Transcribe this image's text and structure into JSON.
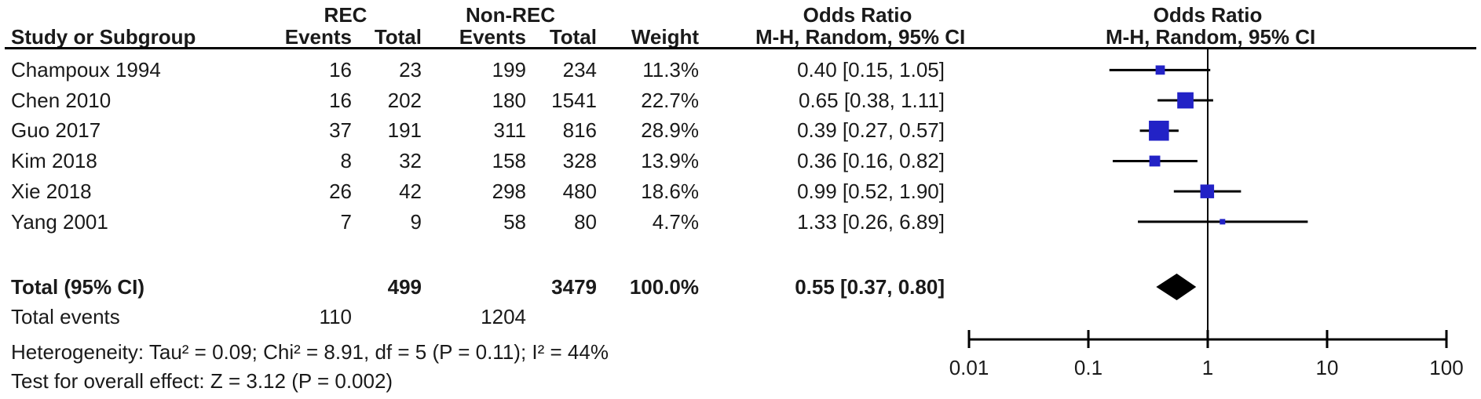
{
  "figure": {
    "header": {
      "group_rec": "REC",
      "group_nonrec": "Non-REC",
      "study_col": "Study or Subgroup",
      "events_col": "Events",
      "total_col": "Total",
      "weight_col": "Weight",
      "or_title": "Odds Ratio",
      "or_subtitle": "M-H, Random, 95% CI"
    },
    "total_row": {
      "label": "Total (95% CI)",
      "total_rec": "499",
      "total_nonrec": "3479",
      "weight": "100.0%",
      "or_ci": "0.55 [0.37, 0.80]"
    },
    "total_events_row": {
      "label": "Total events",
      "events_rec": "110",
      "events_nonrec": "1204"
    },
    "heterogeneity": "Heterogeneity: Tau² = 0.09; Chi² = 8.91, df = 5 (P = 0.11); I² = 44%",
    "overall_effect": "Test for overall effect: Z = 3.12 (P = 0.002)"
  },
  "chart_data": {
    "type": "forest",
    "x_scale": "log10",
    "xlim": [
      0.01,
      100
    ],
    "axis_ticks": [
      "0.01",
      "0.1",
      "1",
      "10",
      "100"
    ],
    "studies": [
      {
        "name": "Champoux 1994",
        "rec_events": 16,
        "rec_total": 23,
        "nonrec_events": 199,
        "nonrec_total": 234,
        "weight_pct": 11.3,
        "or": 0.4,
        "ci_low": 0.15,
        "ci_high": 1.05
      },
      {
        "name": "Chen 2010",
        "rec_events": 16,
        "rec_total": 202,
        "nonrec_events": 180,
        "nonrec_total": 1541,
        "weight_pct": 22.7,
        "or": 0.65,
        "ci_low": 0.38,
        "ci_high": 1.11
      },
      {
        "name": "Guo 2017",
        "rec_events": 37,
        "rec_total": 191,
        "nonrec_events": 311,
        "nonrec_total": 816,
        "weight_pct": 28.9,
        "or": 0.39,
        "ci_low": 0.27,
        "ci_high": 0.57
      },
      {
        "name": "Kim 2018",
        "rec_events": 8,
        "rec_total": 32,
        "nonrec_events": 158,
        "nonrec_total": 328,
        "weight_pct": 13.9,
        "or": 0.36,
        "ci_low": 0.16,
        "ci_high": 0.82
      },
      {
        "name": "Xie 2018",
        "rec_events": 26,
        "rec_total": 42,
        "nonrec_events": 298,
        "nonrec_total": 480,
        "weight_pct": 18.6,
        "or": 0.99,
        "ci_low": 0.52,
        "ci_high": 1.9
      },
      {
        "name": "Yang 2001",
        "rec_events": 7,
        "rec_total": 9,
        "nonrec_events": 58,
        "nonrec_total": 80,
        "weight_pct": 4.7,
        "or": 1.33,
        "ci_low": 0.26,
        "ci_high": 6.89
      }
    ],
    "total": {
      "or": 0.55,
      "ci_low": 0.37,
      "ci_high": 0.8,
      "weight_pct": 100.0
    },
    "marker_color": "#2222C6",
    "diamond_color": "#000000",
    "line_color": "#000000"
  }
}
